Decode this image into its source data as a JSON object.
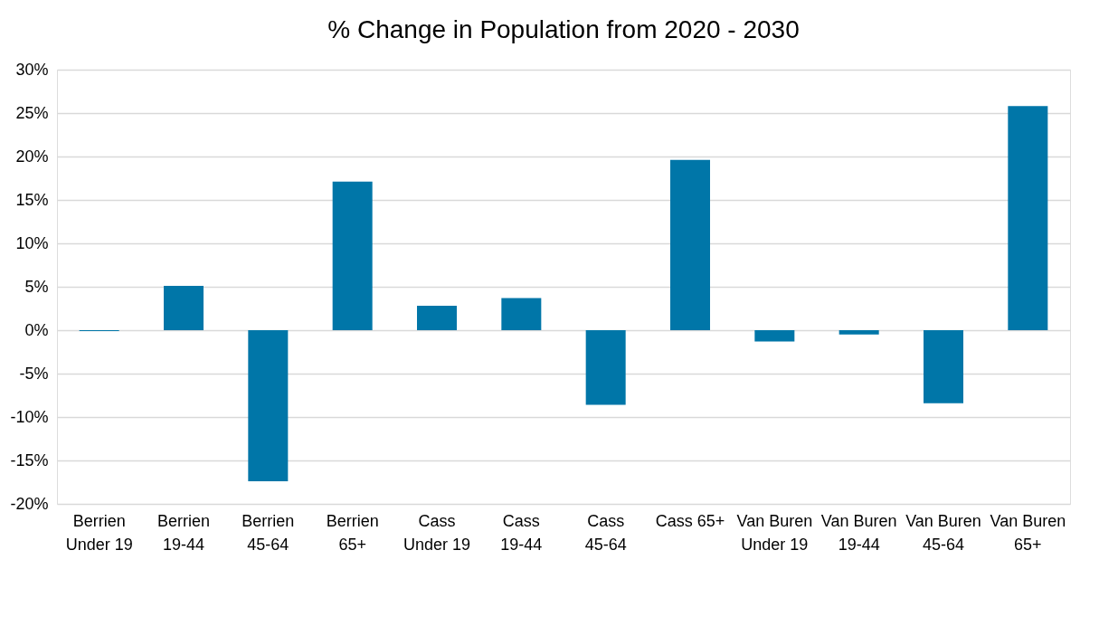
{
  "chart_data": {
    "type": "bar",
    "title": "% Change in Population from 2020 - 2030",
    "categories": [
      "Berrien Under 19",
      "Berrien 19-44",
      "Berrien 45-64",
      "Berrien 65+",
      "Cass Under 19",
      "Cass 19-44",
      "Cass 45-64",
      "Cass 65+",
      "Van Buren Under 19",
      "Van Buren 19-44",
      "Van Buren 45-64",
      "Van Buren 65+"
    ],
    "values": [
      -0.1,
      5.1,
      -17.4,
      17.1,
      2.8,
      3.7,
      -8.6,
      19.6,
      -1.3,
      -0.5,
      -8.4,
      25.8
    ],
    "color": "#0076a8",
    "ylim": [
      -20,
      30
    ],
    "yticks": [
      {
        "value": -20,
        "label": "-20%"
      },
      {
        "value": -15,
        "label": "-15%"
      },
      {
        "value": -10,
        "label": "-10%"
      },
      {
        "value": -5,
        "label": "-5%"
      },
      {
        "value": 0,
        "label": "0%"
      },
      {
        "value": 5,
        "label": "5%"
      },
      {
        "value": 10,
        "label": "10%"
      },
      {
        "value": 15,
        "label": "15%"
      },
      {
        "value": 20,
        "label": "20%"
      },
      {
        "value": 25,
        "label": "25%"
      },
      {
        "value": 30,
        "label": "30%"
      }
    ],
    "grid": "y"
  }
}
